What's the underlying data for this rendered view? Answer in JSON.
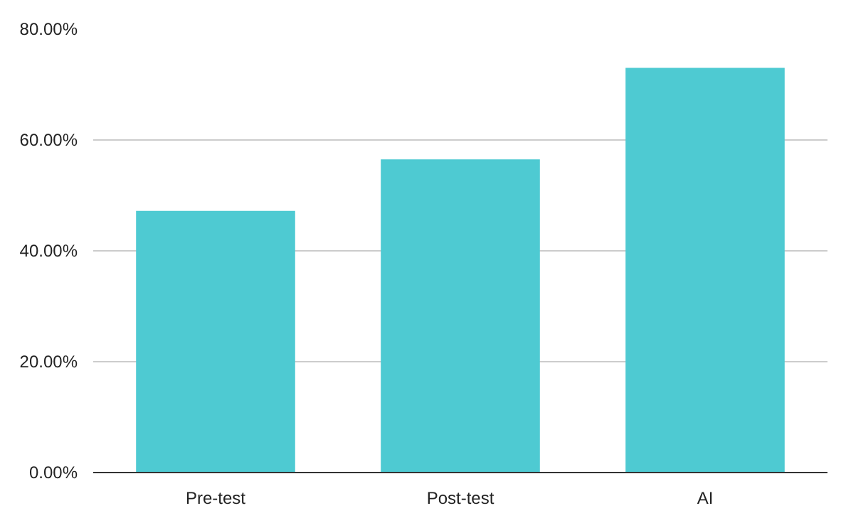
{
  "chart_data": {
    "type": "bar",
    "categories": [
      "Pre-test",
      "Post-test",
      "AI"
    ],
    "values": [
      47.2,
      56.5,
      73.0
    ],
    "color": "#4ecad2",
    "ylim": [
      0,
      80
    ],
    "yticks": [
      {
        "value": 0,
        "label": "0.00%"
      },
      {
        "value": 20,
        "label": "20.00%"
      },
      {
        "value": 40,
        "label": "40.00%"
      },
      {
        "value": 60,
        "label": "60.00%"
      },
      {
        "value": 80,
        "label": "80.00%"
      }
    ],
    "grid": "y"
  }
}
